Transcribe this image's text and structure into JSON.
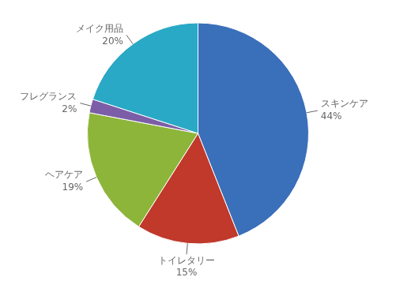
{
  "chart_data": {
    "type": "pie",
    "categories": [
      "スキンケア",
      "トイレタリー",
      "ヘアケア",
      "フレグランス",
      "メイク用品"
    ],
    "values": [
      44,
      15,
      19,
      2,
      20
    ],
    "value_labels": [
      "44%",
      "15%",
      "19%",
      "2%",
      "20%"
    ],
    "colors": [
      "#3a6fba",
      "#c0392b",
      "#8db53a",
      "#7b5ea7",
      "#29a9c5"
    ],
    "data_labels": true
  }
}
